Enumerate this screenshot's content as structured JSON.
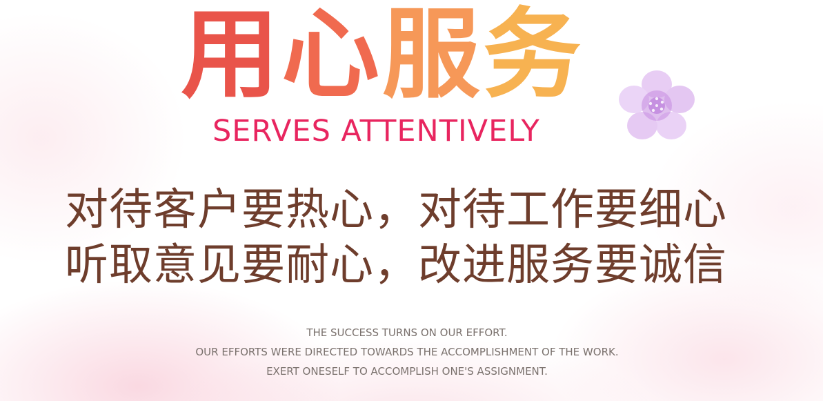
{
  "title_cn": [
    "用",
    "心",
    "服",
    "务"
  ],
  "title_en": "SERVES ATTENTIVELY",
  "slogans": [
    "对待客户要热心，对待工作要细心",
    "听取意见要耐心，改进服务要诚信"
  ],
  "taglines": [
    "THE SUCCESS TURNS ON OUR EFFORT.",
    "OUR EFFORTS WERE DIRECTED TOWARDS THE ACCOMPLISHMENT OF THE WORK.",
    "EXERT ONESELF TO ACCOMPLISH ONE'S ASSIGNMENT."
  ],
  "colors": {
    "title_cn": [
      "#e8463b",
      "#ef5a3c",
      "#f58a42",
      "#f7a83a"
    ],
    "title_en": "#e8255f",
    "slogan": "#6e3d2c",
    "tagline": "#7a716d",
    "flower": "#c58be0"
  },
  "icons": {
    "flower": "flower-icon"
  }
}
